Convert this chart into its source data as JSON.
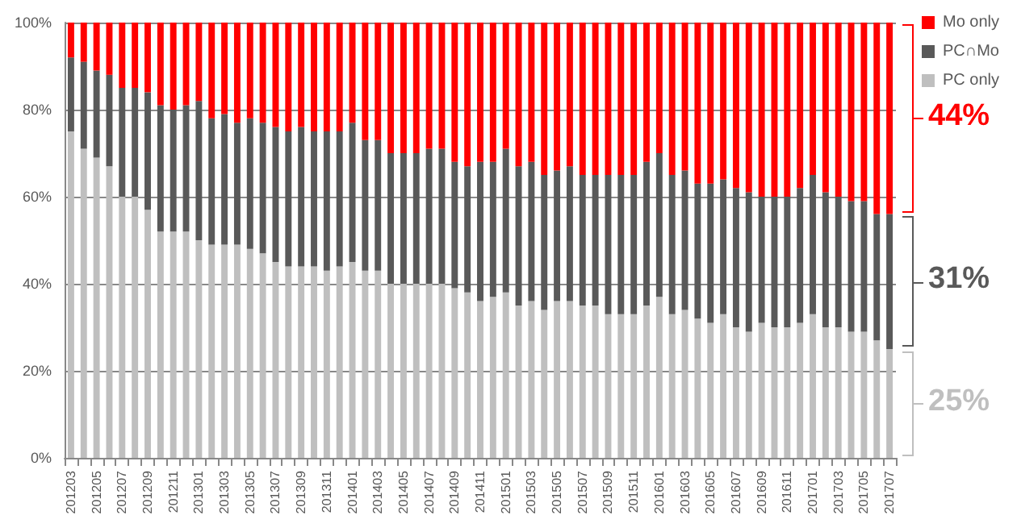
{
  "chart_data": {
    "type": "bar",
    "stacked": true,
    "categories": [
      "201203",
      null,
      "201205",
      null,
      "201207",
      null,
      "201209",
      null,
      "201211",
      null,
      "201301",
      null,
      "201303",
      null,
      "201305",
      null,
      "201307",
      null,
      "201309",
      null,
      "201311",
      null,
      "201401",
      null,
      "201403",
      null,
      "201405",
      null,
      "201407",
      null,
      "201409",
      null,
      "201411",
      null,
      "201501",
      null,
      "201503",
      null,
      "201505",
      null,
      "201507",
      null,
      "201509",
      null,
      "201511",
      null,
      "201601",
      null,
      "201603",
      null,
      "201605",
      null,
      "201607",
      null,
      "201609",
      null,
      "201611",
      null,
      "201701",
      null,
      "201703",
      null,
      "201705",
      null,
      "201707"
    ],
    "series": [
      {
        "name": "PC only",
        "color": "#bfbfbf",
        "values": [
          75,
          71,
          69,
          67,
          60,
          60,
          57,
          52,
          52,
          52,
          50,
          49,
          49,
          49,
          48,
          47,
          45,
          44,
          44,
          44,
          43,
          44,
          45,
          43,
          43,
          40,
          40,
          40,
          40,
          40,
          39,
          38,
          36,
          37,
          38,
          35,
          36,
          34,
          36,
          36,
          35,
          35,
          33,
          33,
          33,
          35,
          37,
          33,
          34,
          32,
          31,
          33,
          30,
          29,
          31,
          30,
          30,
          31,
          33,
          30,
          30,
          29,
          29,
          27,
          25
        ]
      },
      {
        "name": "PC∩Mo",
        "color": "#595959",
        "values": [
          17,
          20,
          20,
          21,
          25,
          25,
          27,
          29,
          28,
          29,
          32,
          29,
          30,
          28,
          30,
          30,
          31,
          31,
          32,
          31,
          32,
          31,
          32,
          30,
          30,
          30,
          30,
          30,
          31,
          31,
          29,
          29,
          32,
          31,
          33,
          32,
          32,
          31,
          30,
          31,
          30,
          30,
          32,
          32,
          32,
          33,
          33,
          32,
          32,
          31,
          32,
          31,
          32,
          32,
          29,
          30,
          30,
          31,
          32,
          31,
          30,
          30,
          30,
          29,
          31
        ]
      },
      {
        "name": "Mo only",
        "color": "#ff0000",
        "values": [
          8,
          9,
          11,
          12,
          15,
          15,
          16,
          19,
          20,
          19,
          18,
          22,
          21,
          23,
          22,
          23,
          24,
          25,
          24,
          25,
          25,
          25,
          23,
          27,
          27,
          30,
          30,
          30,
          29,
          29,
          32,
          33,
          32,
          32,
          29,
          33,
          32,
          35,
          34,
          33,
          35,
          35,
          35,
          35,
          35,
          32,
          30,
          35,
          34,
          37,
          37,
          36,
          38,
          39,
          40,
          40,
          40,
          38,
          35,
          39,
          40,
          41,
          41,
          44,
          44
        ]
      }
    ],
    "ylim": [
      0,
      100
    ],
    "yticks": [
      {
        "value": 0,
        "label": "0%"
      },
      {
        "value": 20,
        "label": "20%"
      },
      {
        "value": 40,
        "label": "40%"
      },
      {
        "value": 60,
        "label": "60%"
      },
      {
        "value": 80,
        "label": "80%"
      },
      {
        "value": 100,
        "label": "100%"
      }
    ],
    "grid": "y",
    "legend": "top right",
    "annotations": [
      {
        "text": "44%",
        "x": "201707",
        "y": 78
      },
      {
        "text": "31%",
        "x": "201707",
        "y": 40.5
      },
      {
        "text": "25%",
        "x": "201707",
        "y": 12.5
      }
    ]
  }
}
